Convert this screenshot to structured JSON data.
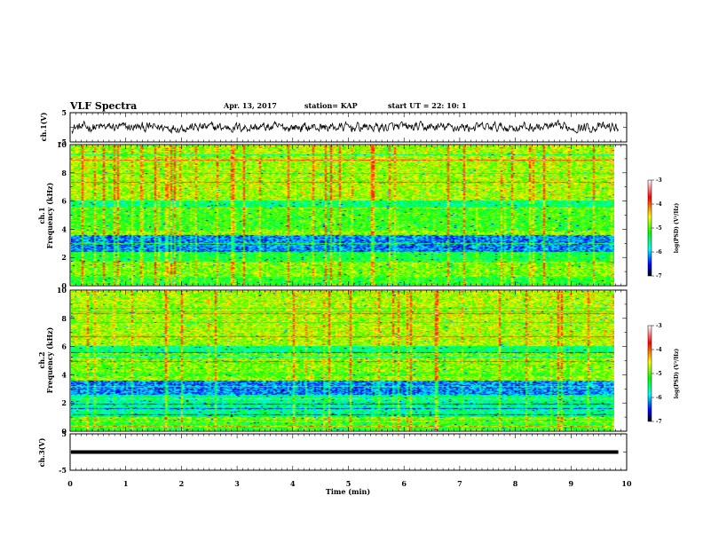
{
  "header": {
    "title": "VLF Spectra",
    "date": "Apr. 13, 2017",
    "station": "station= KAP",
    "start": "start  UT =   22: 10: 1"
  },
  "colorbar": {
    "label": "log(PSD) (V²/Hz)",
    "ticks": [
      "-3",
      "-4",
      "-5",
      "-6",
      "-7"
    ],
    "colors": [
      "#ffffff",
      "#ff0000",
      "#ffff00",
      "#00ff00",
      "#00ffff",
      "#0000ff",
      "#000000"
    ]
  },
  "chart_data": [
    {
      "type": "line",
      "ylabel": "ch.1(V)",
      "ylim": [
        -5,
        5
      ],
      "yticks": [
        "5",
        "-5"
      ],
      "xlim": [
        0,
        10
      ],
      "note": "dense noisy waveform centered near 0"
    },
    {
      "type": "heatmap",
      "ylabel": "ch.1\nFrequency (kHz)",
      "ylim": [
        0,
        10
      ],
      "yticks": [
        "10",
        "8",
        "6",
        "4",
        "2",
        "0"
      ],
      "xlim": [
        0,
        9.85
      ],
      "scale_range": [
        -7,
        -3
      ]
    },
    {
      "type": "heatmap",
      "ylabel": "ch.2\nFrequency (kHz)",
      "ylim": [
        0,
        10
      ],
      "yticks": [
        "10",
        "8",
        "6",
        "4",
        "2",
        "0"
      ],
      "xlim": [
        0,
        9.85
      ],
      "scale_range": [
        -7,
        -3
      ]
    },
    {
      "type": "line",
      "ylabel": "ch.3(V)",
      "ylim": [
        -5,
        5
      ],
      "yticks": [
        "5",
        "-5"
      ],
      "value": 0,
      "xlim": [
        0,
        10
      ]
    }
  ],
  "xaxis": {
    "label": "Time (min)",
    "ticks": [
      "0",
      "1",
      "2",
      "3",
      "4",
      "5",
      "6",
      "7",
      "8",
      "9",
      "10"
    ]
  }
}
